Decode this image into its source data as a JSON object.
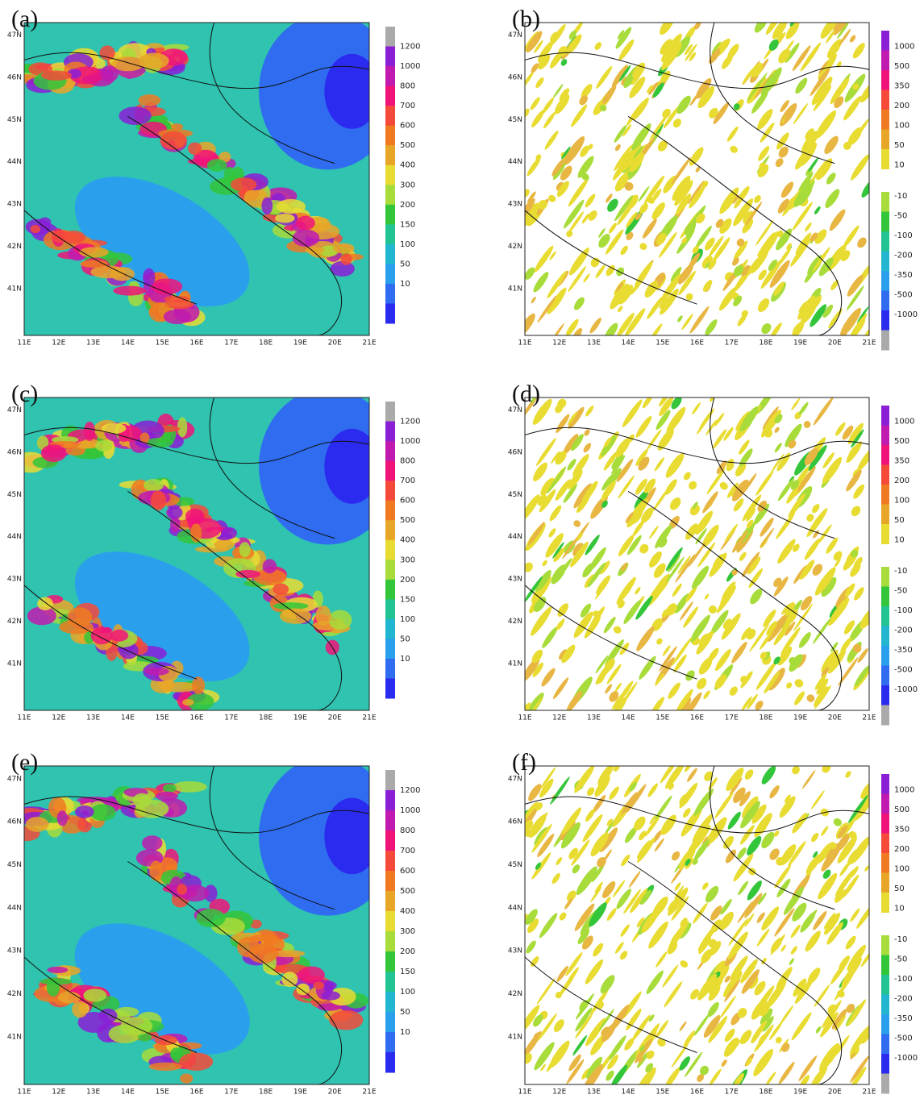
{
  "panels": [
    {
      "label": "(a)",
      "kind": "abs"
    },
    {
      "label": "(b)",
      "kind": "diff"
    },
    {
      "label": "(c)",
      "kind": "abs"
    },
    {
      "label": "(d)",
      "kind": "diff"
    },
    {
      "label": "(e)",
      "kind": "abs"
    },
    {
      "label": "(f)",
      "kind": "diff"
    }
  ],
  "lon_labels": [
    "11E",
    "12E",
    "13E",
    "14E",
    "15E",
    "16E",
    "17E",
    "18E",
    "19E",
    "20E",
    "21E"
  ],
  "lat_labels": [
    "47N",
    "46N",
    "45N",
    "44N",
    "43N",
    "42N",
    "41N"
  ],
  "abs_colorbar": [
    "1200",
    "1000",
    "800",
    "700",
    "600",
    "500",
    "400",
    "300",
    "200",
    "150",
    "100",
    "50",
    "10"
  ],
  "diff_colorbar_pos": [
    "1000",
    "500",
    "350",
    "200",
    "100",
    "50",
    "10"
  ],
  "diff_colorbar_neg": [
    "-10",
    "-50",
    "-100",
    "-200",
    "-350",
    "-500",
    "-1000"
  ]
}
